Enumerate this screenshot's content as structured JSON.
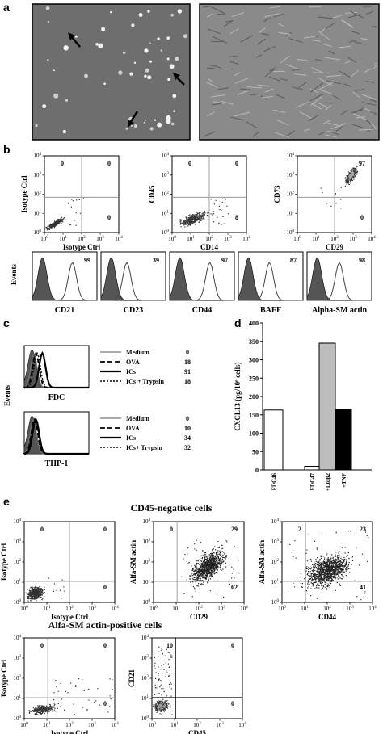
{
  "panel_labels": {
    "a": "a",
    "b": "b",
    "c": "c",
    "d": "d",
    "e": "e"
  },
  "panel_b": {
    "scatter": [
      {
        "ylabel": "Isotype Ctrl",
        "xlabel": "Isotype Ctrl",
        "q": [
          "0",
          "0",
          "",
          "0"
        ]
      },
      {
        "ylabel": "CD45",
        "xlabel": "CD14",
        "q": [
          "0",
          "0",
          "",
          "8"
        ]
      },
      {
        "ylabel": "CD73",
        "xlabel": "CD29",
        "q": [
          "",
          "97",
          "",
          "0"
        ]
      }
    ],
    "hist_ylabel": "Events",
    "hist": [
      {
        "label": "CD21",
        "value": "99"
      },
      {
        "label": "CD23",
        "value": "39"
      },
      {
        "label": "CD44",
        "value": "97"
      },
      {
        "label": "BAFF",
        "value": "87"
      },
      {
        "label": "Alpha-SM actin",
        "value": "98"
      }
    ]
  },
  "panel_c": {
    "ylabel": "Events",
    "fdc": {
      "xlabel": "FDC",
      "legend": [
        {
          "name": "Medium",
          "value": "0"
        },
        {
          "name": "OVA",
          "value": "18"
        },
        {
          "name": "ICs",
          "value": "91"
        },
        {
          "name": "ICs + Trypsin",
          "value": "18"
        }
      ]
    },
    "thp1": {
      "xlabel": "THP-1",
      "legend": [
        {
          "name": "Medium",
          "value": "0"
        },
        {
          "name": "OVA",
          "value": "10"
        },
        {
          "name": "ICs",
          "value": "34"
        },
        {
          "name": "ICs+ Trypsin",
          "value": "32"
        }
      ]
    }
  },
  "tick_labels": {
    "exp": [
      "10",
      "10",
      "10",
      "10",
      "10"
    ],
    "pow": [
      "0",
      "1",
      "2",
      "3",
      "4"
    ]
  },
  "chart_data": {
    "type": "bar",
    "categories": [
      "FDC46",
      "FDC47",
      "+Ltαβ2",
      "+TNF"
    ],
    "values": [
      163,
      10,
      345,
      165
    ],
    "colors": [
      "#ffffff",
      "#ffffff",
      "#bdbdbd",
      "#000000"
    ],
    "ylabel": "CXCL13 (pg/10⁶ cells)",
    "ylim": [
      0,
      400
    ],
    "yticks": [
      "0",
      "50",
      "100",
      "150",
      "200",
      "250",
      "300",
      "350",
      "400"
    ]
  },
  "panel_e": {
    "title1": "CD45-negative cells",
    "title2": "Alfa-SM actin-positive cells",
    "plots": [
      {
        "ylabel": "Isotype Ctrl",
        "xlabel": "Isotype Ctrl",
        "q": [
          "0",
          "0",
          "",
          "0"
        ]
      },
      {
        "ylabel": "Alfa-SM actin",
        "xlabel": "CD29",
        "q": [
          "0",
          "29",
          "",
          "62"
        ]
      },
      {
        "ylabel": "Alfa-SM actin",
        "xlabel": "CD44",
        "q": [
          "2",
          "23",
          "",
          "41"
        ]
      },
      {
        "ylabel": "Isotype Ctrl",
        "xlabel": "Isotype Ctrl",
        "q": [
          "0",
          "0",
          "",
          "0"
        ]
      },
      {
        "ylabel": "CD21",
        "xlabel": "CD45",
        "q": [
          "10",
          "0",
          "",
          "0"
        ]
      }
    ]
  }
}
